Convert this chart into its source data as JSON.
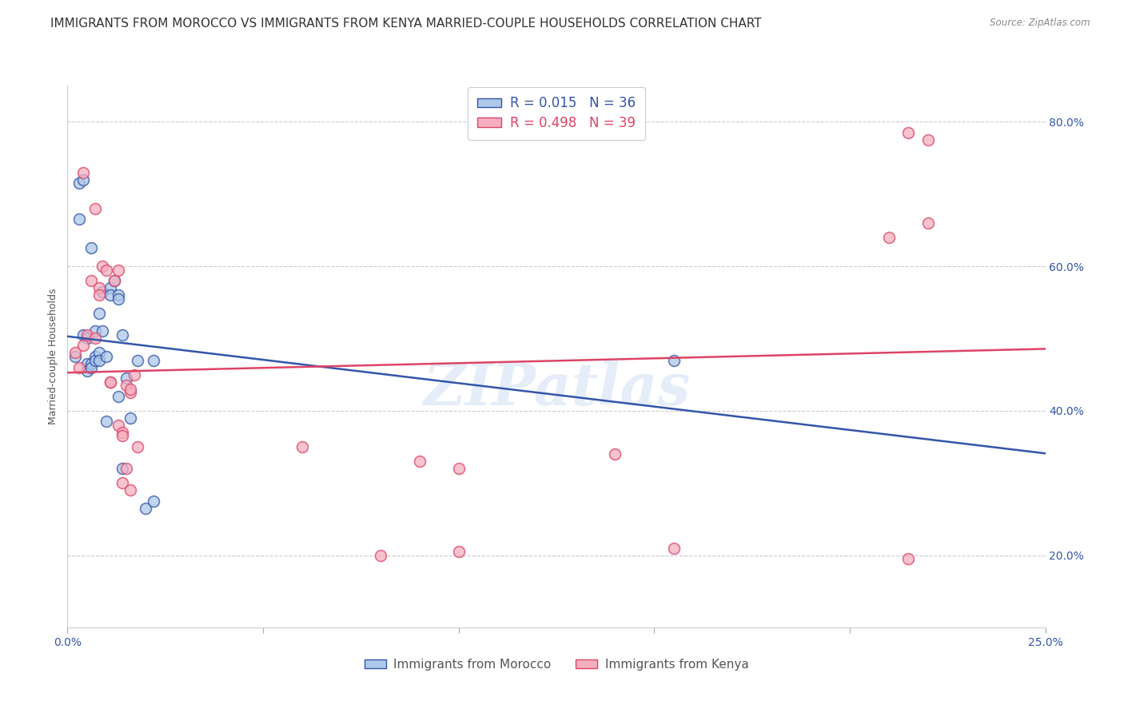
{
  "title": "IMMIGRANTS FROM MOROCCO VS IMMIGRANTS FROM KENYA MARRIED-COUPLE HOUSEHOLDS CORRELATION CHART",
  "source": "Source: ZipAtlas.com",
  "ylabel": "Married-couple Households",
  "xlim": [
    0.0,
    0.25
  ],
  "ylim": [
    0.1,
    0.85
  ],
  "yticks": [
    0.2,
    0.4,
    0.6,
    0.8
  ],
  "ytick_labels": [
    "20.0%",
    "40.0%",
    "60.0%",
    "80.0%"
  ],
  "xticks": [
    0.0,
    0.05,
    0.1,
    0.15,
    0.2,
    0.25
  ],
  "xtick_labels": [
    "0.0%",
    "",
    "",
    "",
    "",
    "25.0%"
  ],
  "morocco_color": "#adc8e8",
  "kenya_color": "#f5afc0",
  "morocco_line_color": "#3355aa",
  "kenya_line_color": "#dd4466",
  "R_morocco": 0.015,
  "N_morocco": 36,
  "R_kenya": 0.498,
  "N_kenya": 39,
  "morocco_x": [
    0.002,
    0.003,
    0.003,
    0.004,
    0.004,
    0.005,
    0.005,
    0.005,
    0.006,
    0.006,
    0.006,
    0.007,
    0.007,
    0.007,
    0.008,
    0.008,
    0.008,
    0.009,
    0.009,
    0.01,
    0.01,
    0.011,
    0.011,
    0.012,
    0.013,
    0.013,
    0.013,
    0.014,
    0.014,
    0.015,
    0.016,
    0.018,
    0.02,
    0.022,
    0.022,
    0.155
  ],
  "morocco_y": [
    0.475,
    0.715,
    0.665,
    0.72,
    0.505,
    0.5,
    0.465,
    0.455,
    0.625,
    0.465,
    0.46,
    0.51,
    0.475,
    0.47,
    0.535,
    0.48,
    0.47,
    0.565,
    0.51,
    0.475,
    0.385,
    0.57,
    0.56,
    0.58,
    0.56,
    0.555,
    0.42,
    0.505,
    0.32,
    0.445,
    0.39,
    0.47,
    0.265,
    0.275,
    0.47,
    0.47
  ],
  "kenya_x": [
    0.002,
    0.003,
    0.004,
    0.004,
    0.005,
    0.006,
    0.007,
    0.007,
    0.008,
    0.008,
    0.009,
    0.01,
    0.011,
    0.011,
    0.012,
    0.013,
    0.013,
    0.014,
    0.014,
    0.014,
    0.015,
    0.015,
    0.016,
    0.016,
    0.016,
    0.017,
    0.018,
    0.06,
    0.08,
    0.09,
    0.1,
    0.1,
    0.14,
    0.155,
    0.21,
    0.215,
    0.215,
    0.22,
    0.22
  ],
  "kenya_y": [
    0.48,
    0.46,
    0.49,
    0.73,
    0.505,
    0.58,
    0.68,
    0.5,
    0.57,
    0.56,
    0.6,
    0.595,
    0.44,
    0.44,
    0.58,
    0.595,
    0.38,
    0.37,
    0.365,
    0.3,
    0.435,
    0.32,
    0.425,
    0.43,
    0.29,
    0.45,
    0.35,
    0.35,
    0.2,
    0.33,
    0.32,
    0.205,
    0.34,
    0.21,
    0.64,
    0.785,
    0.195,
    0.775,
    0.66
  ],
  "watermark": "ZIPatlas",
  "title_fontsize": 11,
  "label_fontsize": 9,
  "tick_fontsize": 10,
  "background_color": "#ffffff",
  "grid_color": "#cccccc"
}
